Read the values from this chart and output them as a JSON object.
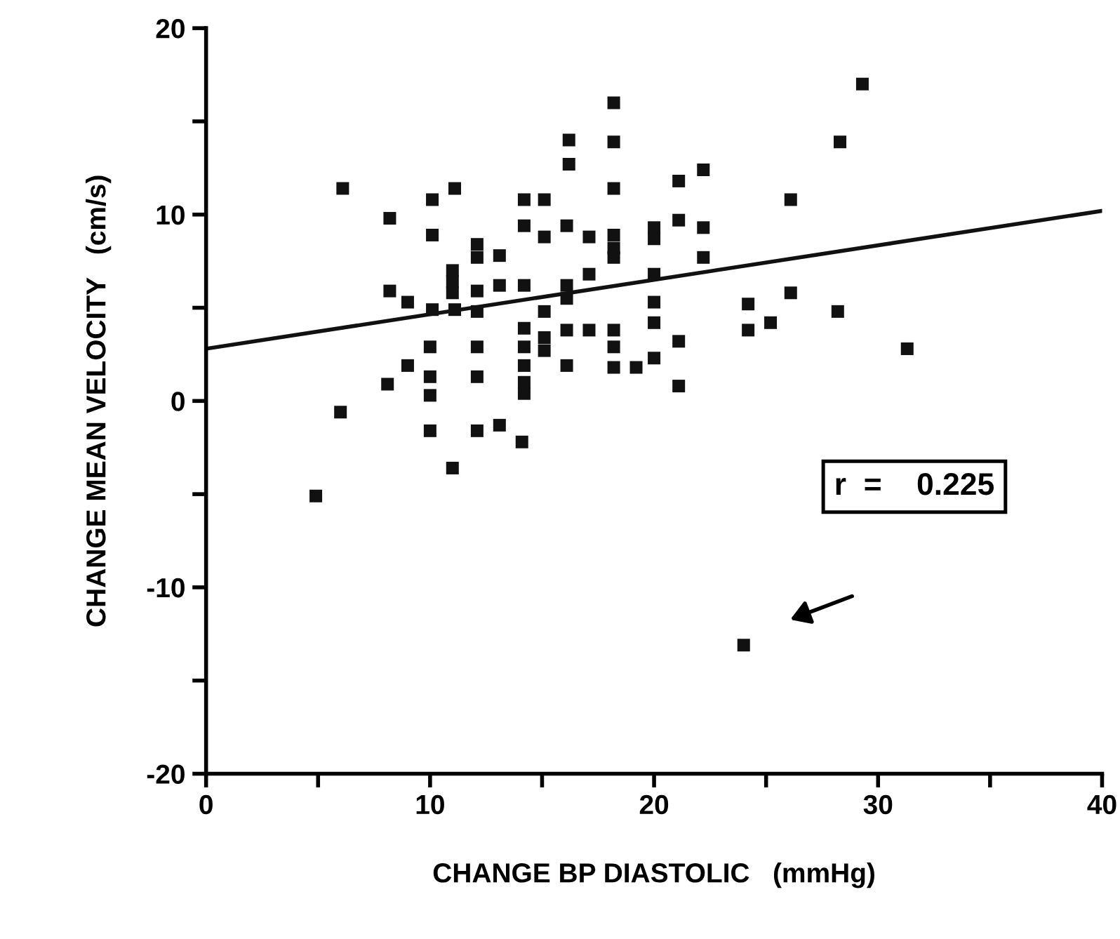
{
  "chart_data": {
    "type": "scatter",
    "xlabel": "CHANGE BP DIASTOLIC   (mmHg)",
    "ylabel": "CHANGE MEAN VELOCITY   (cm/s)",
    "xlim": [
      0,
      40
    ],
    "ylim": [
      -20,
      20
    ],
    "xticks": [
      0,
      {
        "value": 5,
        "label": null
      },
      10,
      {
        "value": 15,
        "label": null
      },
      20,
      {
        "value": 25,
        "label": null
      },
      30,
      {
        "value": 35,
        "label": null
      },
      40
    ],
    "yticks": [
      -20,
      {
        "value": -15,
        "label": null
      },
      -10,
      {
        "value": -5,
        "label": null
      },
      0,
      {
        "value": 5,
        "label": null
      },
      10,
      {
        "value": 15,
        "label": null
      },
      20
    ],
    "grid": false,
    "legend": false,
    "marker": "square",
    "annotations": [
      "r  =    0.225"
    ],
    "series": [
      {
        "color": "#111111",
        "x": [
          4.9,
          6.0,
          6.1,
          8.2,
          8.2,
          9.0,
          8.1,
          9.0,
          10.1,
          10.1,
          10.1,
          10.0,
          10.0,
          10.0,
          10.0,
          11.1,
          11.0,
          11.0,
          11.0,
          11.1,
          11.0,
          12.1,
          12.1,
          12.1,
          12.1,
          12.1,
          12.1,
          12.1,
          13.1,
          13.1,
          13.1,
          14.2,
          14.2,
          14.2,
          14.2,
          14.2,
          14.2,
          14.2,
          14.2,
          14.1,
          15.1,
          15.1,
          15.1,
          15.1,
          15.1,
          16.2,
          16.2,
          16.1,
          16.1,
          16.1,
          16.1,
          16.1,
          17.1,
          17.1,
          17.1,
          18.2,
          18.2,
          18.2,
          18.2,
          18.2,
          18.2,
          18.2,
          18.2,
          18.2,
          19.2,
          20.0,
          20.0,
          20.0,
          20.0,
          20.0,
          20.0,
          21.1,
          22.2,
          21.1,
          22.2,
          22.2,
          26.1,
          28.3,
          29.3,
          24.2,
          24.2,
          25.2,
          26.1,
          28.2,
          31.3,
          21.1,
          21.1,
          24.0
        ],
        "values": [
          -5.1,
          -0.6,
          11.4,
          9.8,
          5.9,
          5.3,
          0.9,
          1.9,
          10.8,
          8.9,
          4.9,
          2.9,
          1.3,
          0.3,
          -1.6,
          11.4,
          7.0,
          6.4,
          5.8,
          4.9,
          -3.6,
          8.4,
          7.7,
          5.9,
          4.8,
          2.9,
          1.3,
          -1.6,
          7.8,
          6.2,
          -1.3,
          10.8,
          9.4,
          6.2,
          3.9,
          2.9,
          1.9,
          1.0,
          0.4,
          -2.2,
          10.8,
          8.8,
          4.8,
          3.4,
          2.7,
          14.0,
          12.7,
          9.4,
          6.2,
          5.5,
          3.8,
          1.9,
          8.8,
          6.8,
          3.8,
          16.0,
          13.9,
          11.4,
          8.9,
          8.2,
          7.7,
          3.8,
          2.9,
          1.8,
          1.8,
          9.3,
          8.7,
          6.8,
          5.3,
          4.2,
          2.3,
          11.8,
          12.4,
          9.7,
          9.3,
          7.7,
          10.8,
          13.9,
          17.0,
          5.2,
          3.8,
          4.2,
          5.8,
          4.8,
          2.8,
          3.2,
          0.8,
          -13.1
        ]
      },
      {
        "type": "line",
        "color": "#111111",
        "marker": "none",
        "x": [
          0,
          40
        ],
        "values": [
          2.8,
          10.2
        ]
      }
    ]
  }
}
